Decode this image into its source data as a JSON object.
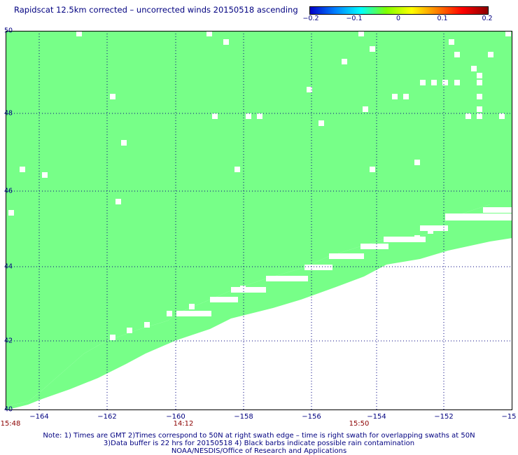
{
  "title": "Rapidscat 12.5km corrected – uncorrected winds 20150518 ascending",
  "colorbar": {
    "labels": [
      "−0.2",
      "−0.1",
      "0",
      "0.1",
      "0.2"
    ],
    "colors": [
      "#0000c8",
      "#0080ff",
      "#00ffff",
      "#80ff00",
      "#ffff00",
      "#ff8000",
      "#ff0000",
      "#8b0000"
    ]
  },
  "map": {
    "lat_labels": [
      "50",
      "48",
      "46",
      "44",
      "42",
      "40"
    ],
    "lon_labels": [
      "−164",
      "−162",
      "−160",
      "−158",
      "−156",
      "−154",
      "−152",
      "−15"
    ],
    "time_labels": [
      "15:48",
      "14:12",
      "15:50"
    ],
    "fill_color": "#77ff88",
    "grid_color": "#000080",
    "grid": true
  },
  "notes": {
    "line1": "Note: 1) Times are GMT 2)Times correspond to 50N at right swath edge – time is right swath for overlapping swaths at 50N",
    "line2": "3)Data buffer is 22 hrs for 20150518 4) Black barbs indicate possible rain contamination",
    "line3": "NOAA/NESDIS/Office of Research and Applications"
  }
}
